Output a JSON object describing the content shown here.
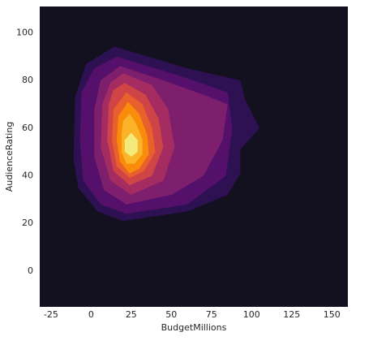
{
  "chart_data": {
    "type": "kde",
    "xlabel": "BudgetMillions",
    "ylabel": "AudienceRating",
    "xlim": [
      -32,
      160
    ],
    "ylim": [
      -15,
      111
    ],
    "xticks": [
      -25,
      0,
      25,
      50,
      75,
      100,
      125,
      150
    ],
    "yticks": [
      0,
      20,
      40,
      60,
      80,
      100
    ],
    "background_color": "#13111f",
    "levels": [
      {
        "color": "#2d1152",
        "x": [
          14.5,
          60,
          93,
          96,
          105,
          93,
          93,
          85,
          60,
          20,
          4,
          -8,
          -11,
          -10,
          -3
        ],
        "y": [
          94.2,
          85,
          80,
          72,
          60,
          51,
          41,
          32,
          25,
          21,
          25,
          35,
          47,
          73,
          87
        ]
      },
      {
        "color": "#55106b",
        "x": [
          16,
          55,
          85,
          88,
          84,
          60,
          22,
          6,
          -5,
          -7,
          -6,
          2
        ],
        "y": [
          90,
          82,
          75,
          60,
          40,
          28,
          24,
          28,
          38,
          55,
          75,
          85
        ]
      },
      {
        "color": "#7e1f6e",
        "x": [
          18,
          45,
          70,
          85,
          82,
          70,
          50,
          22,
          8,
          2,
          2,
          6
        ],
        "y": [
          86,
          80,
          74,
          70,
          55,
          40,
          32,
          28,
          34,
          48,
          68,
          80
        ]
      },
      {
        "color": "#a52c60",
        "x": [
          20,
          38,
          48,
          52,
          45,
          25,
          12,
          6,
          7,
          12
        ],
        "y": [
          83,
          78,
          68,
          52,
          38,
          32,
          38,
          52,
          70,
          79
        ]
      },
      {
        "color": "#cf4446",
        "x": [
          21,
          34,
          42,
          45,
          38,
          24,
          14,
          10,
          11,
          14
        ],
        "y": [
          79,
          74,
          64,
          52,
          40,
          36,
          42,
          55,
          70,
          76
        ]
      },
      {
        "color": "#e8602c",
        "x": [
          22,
          32,
          38,
          40,
          33,
          24,
          16,
          13,
          14
        ],
        "y": [
          75,
          70,
          60,
          50,
          42,
          39,
          44,
          55,
          68
        ]
      },
      {
        "color": "#f98c0a",
        "x": [
          23,
          30,
          35,
          36,
          30,
          24,
          18,
          16,
          17
        ],
        "y": [
          71,
          66,
          57,
          49,
          43,
          41,
          46,
          55,
          65
        ]
      },
      {
        "color": "#fbb429",
        "x": [
          24,
          28,
          32,
          32,
          27,
          22,
          19,
          19,
          20
        ],
        "y": [
          66,
          62,
          55,
          49,
          45,
          45,
          50,
          58,
          63
        ]
      },
      {
        "color": "#f3ea7a",
        "x": [
          25,
          29,
          29,
          25,
          21,
          21
        ],
        "y": [
          58,
          55,
          50,
          48,
          50,
          55
        ]
      }
    ]
  }
}
